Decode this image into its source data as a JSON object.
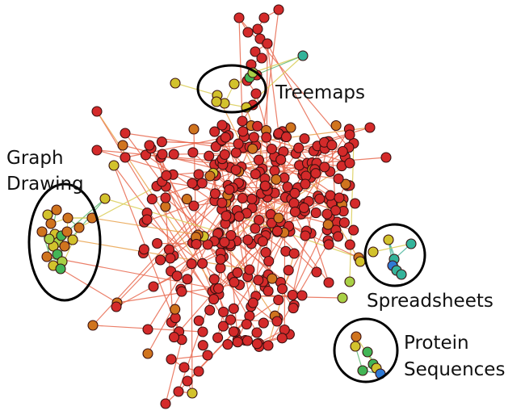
{
  "labels": {
    "treemaps": "Treemaps",
    "graph_drawing": [
      "Graph",
      "Drawing"
    ],
    "spreadsheets": "Spreadsheets",
    "protein_sequences": [
      "Protein",
      "Sequences"
    ]
  },
  "colors": {
    "red": "#d42a2a",
    "orange": "#d0741e",
    "yellow": "#d2c22c",
    "lime": "#a8d045",
    "green": "#43b556",
    "teal": "#34b39a",
    "blue": "#2f7ad4",
    "edge_red": "#e8694f",
    "edge_orange": "#e9a24c",
    "edge_yellow": "#d9cc55",
    "edge_green": "#5bb66e",
    "edge_teal": "#4ab59c"
  }
}
